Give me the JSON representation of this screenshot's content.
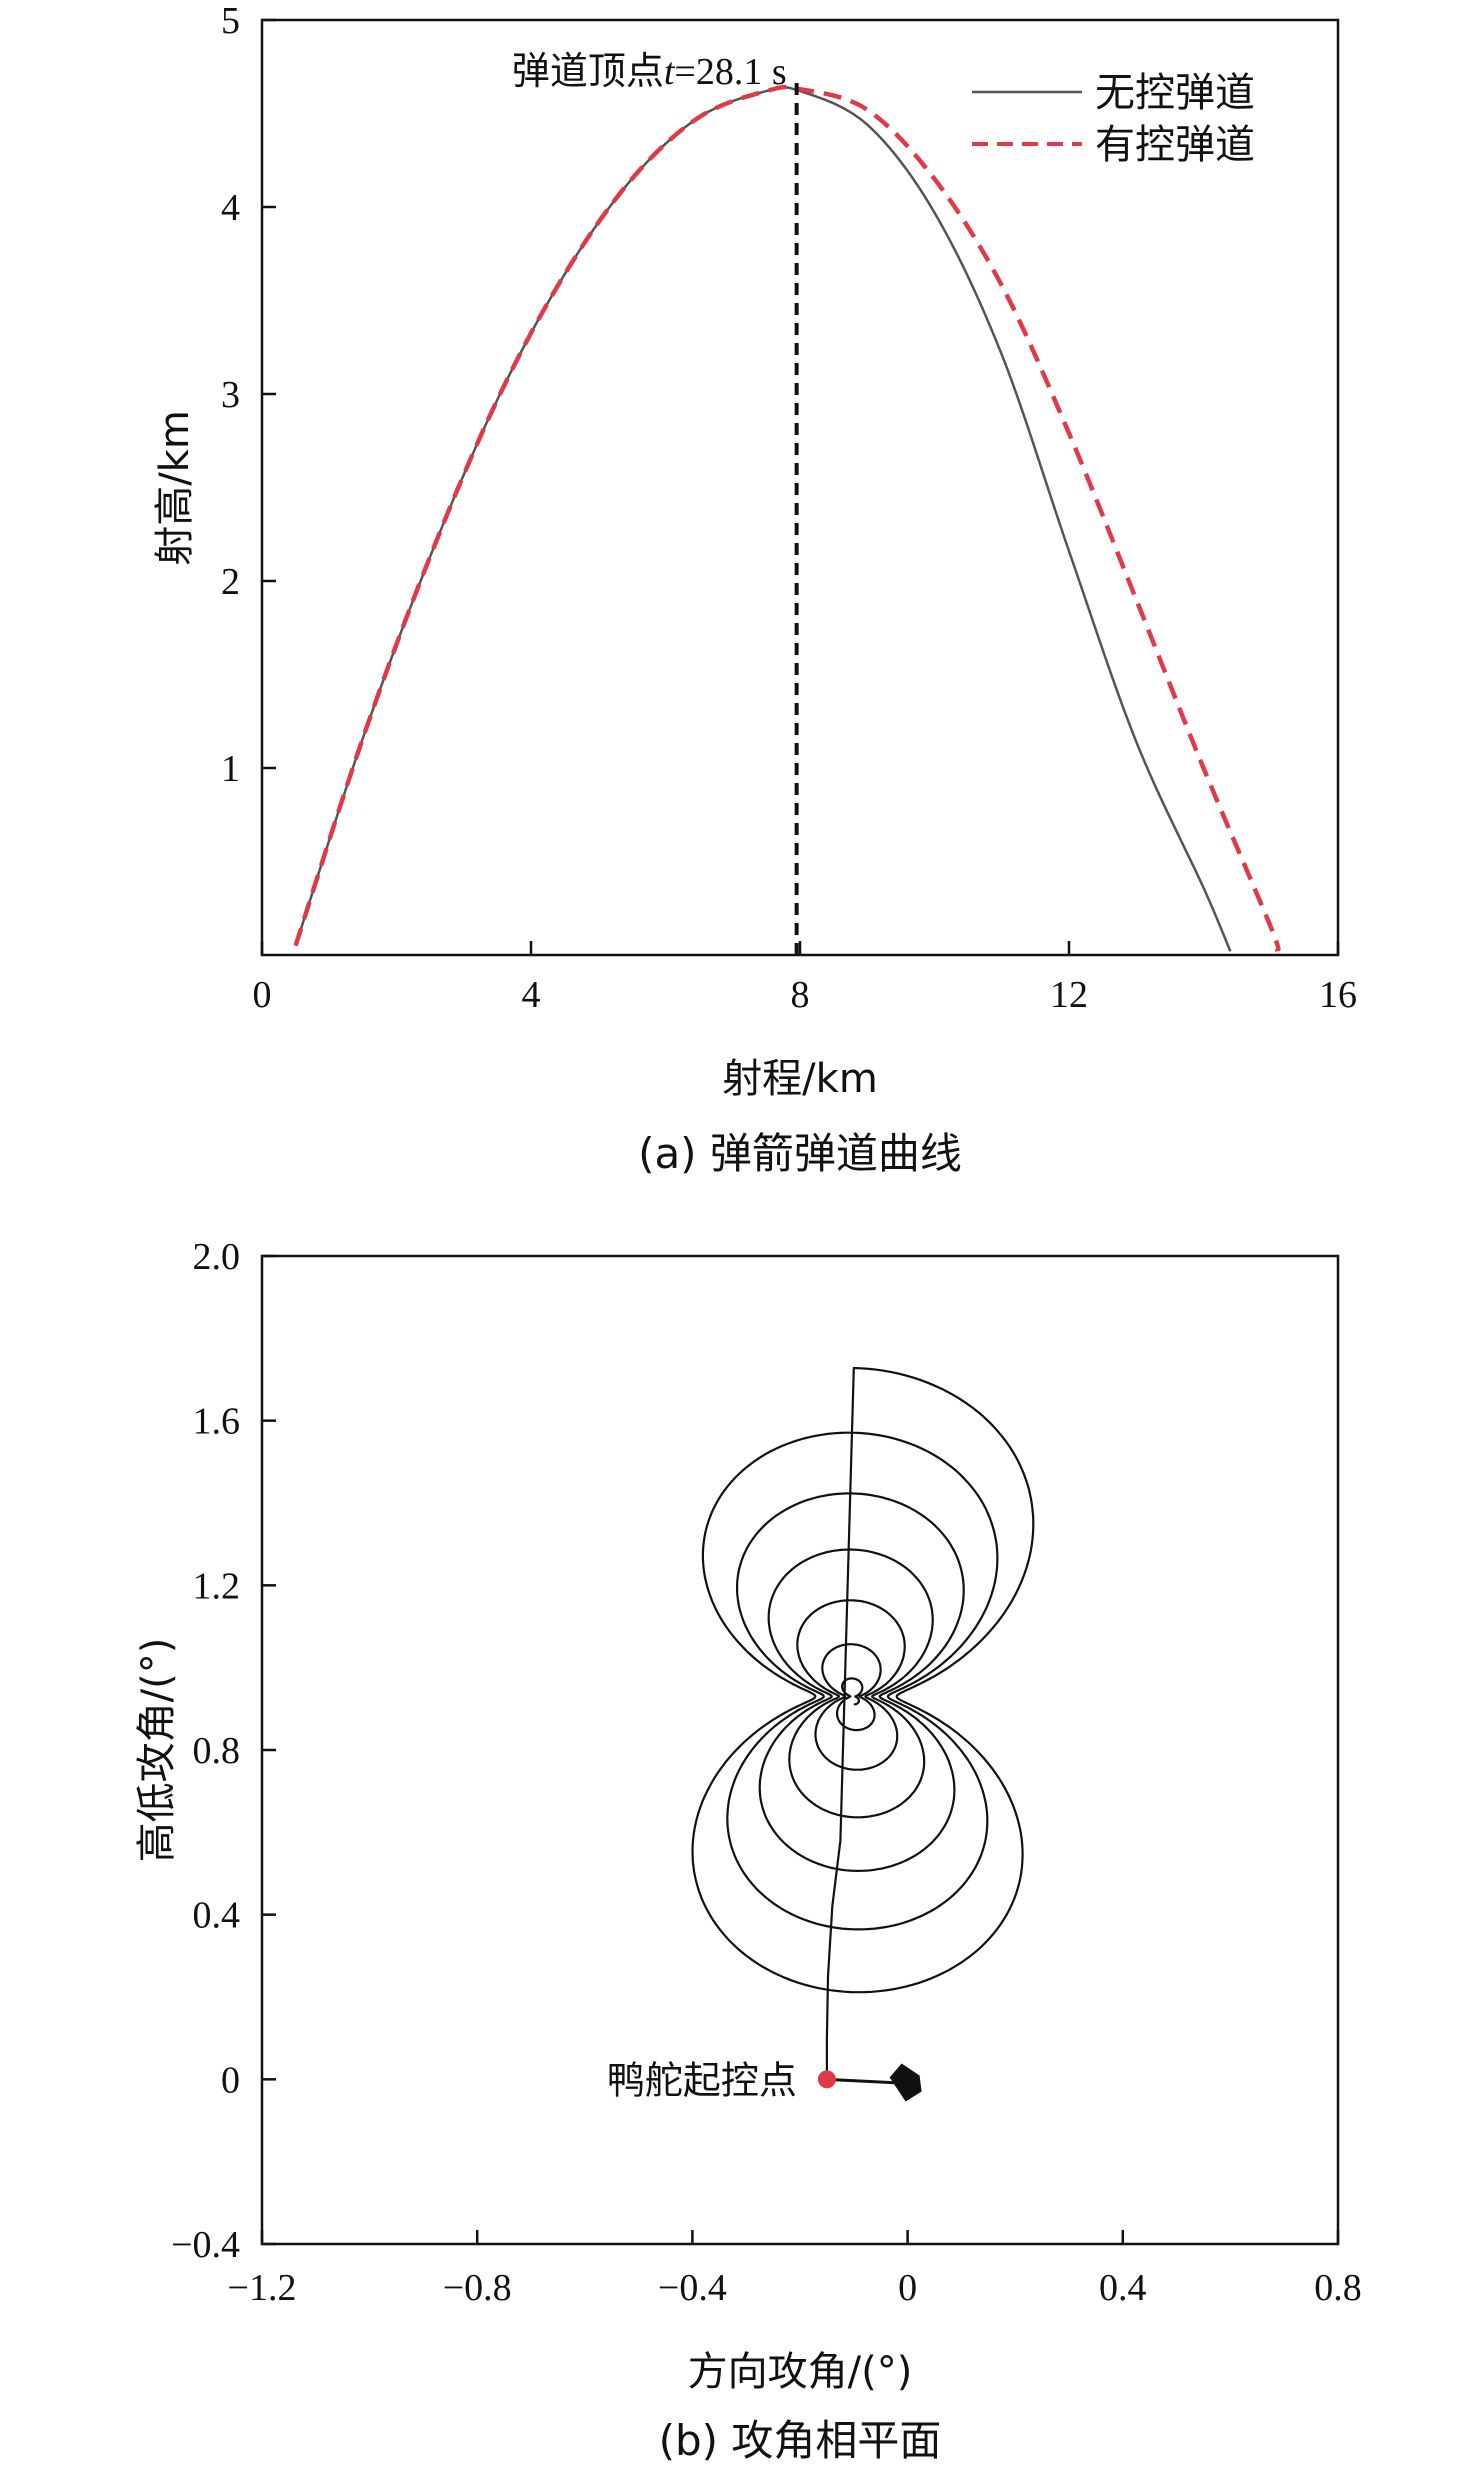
{
  "chart_data": [
    {
      "type": "line",
      "title": "",
      "caption": "(a)  弹箭弹道曲线",
      "xlabel": "射程/km",
      "ylabel": "射高/km",
      "xlim": [
        0,
        16
      ],
      "ylim": [
        0,
        5
      ],
      "x_ticks": [
        "0",
        "4",
        "8",
        "12",
        "16"
      ],
      "x_tick_values": [
        0,
        4,
        8,
        12,
        16
      ],
      "y_ticks": [
        "1",
        "2",
        "3",
        "4",
        "5"
      ],
      "y_tick_values": [
        1,
        2,
        3,
        4,
        5
      ],
      "grid": false,
      "legend_position": "top-right",
      "series": [
        {
          "name": "无控弹道",
          "color": "#555555",
          "style": "solid",
          "x": [
            0.5,
            1.5,
            2.5,
            3.5,
            4.5,
            5.5,
            6.5,
            7.5,
            8.0,
            9.0,
            10.0,
            11.0,
            12.0,
            13.0,
            14.0,
            14.4
          ],
          "y": [
            0.05,
            1.16,
            2.13,
            2.97,
            3.64,
            4.15,
            4.48,
            4.62,
            4.62,
            4.44,
            3.97,
            3.21,
            2.16,
            1.14,
            0.36,
            0.02
          ]
        },
        {
          "name": "有控弹道",
          "color": "#e03a4a",
          "style": "dashed",
          "x": [
            0.5,
            1.5,
            2.5,
            3.5,
            4.5,
            5.5,
            6.5,
            7.5,
            8.0,
            9.0,
            10.0,
            11.0,
            12.0,
            13.0,
            14.0,
            15.0,
            15.1
          ],
          "y": [
            0.05,
            1.16,
            2.13,
            2.97,
            3.64,
            4.15,
            4.48,
            4.62,
            4.63,
            4.52,
            4.15,
            3.58,
            2.79,
            1.9,
            1.0,
            0.15,
            0.02
          ]
        }
      ],
      "vline": {
        "x": 7.95,
        "label": "弹道顶点",
        "label_t": "t",
        "label_value": "=28.1 s"
      }
    },
    {
      "type": "line",
      "title": "",
      "caption": "(b) 攻角相平面",
      "xlabel": "方向攻角/(°)",
      "ylabel": "高低攻角/(°)",
      "xlim": [
        -1.2,
        0.8
      ],
      "ylim": [
        -0.4,
        2.0
      ],
      "x_ticks": [
        "−1.2",
        "−0.8",
        "−0.4",
        "0",
        "0.4",
        "0.8"
      ],
      "x_tick_values": [
        -1.2,
        -0.8,
        -0.4,
        0,
        0.4,
        0.8
      ],
      "y_ticks": [
        "−0.4",
        "0",
        "0.4",
        "0.8",
        "1.2",
        "1.6",
        "2.0"
      ],
      "y_tick_values": [
        -0.4,
        0,
        0.4,
        0.8,
        1.2,
        1.6,
        2.0
      ],
      "grid": false,
      "start_point": {
        "x": -0.15,
        "y": 0,
        "label": "鸭舵起控点",
        "color": "#e03a4a"
      },
      "marker_end": {
        "x": 0.0,
        "y": -0.01
      },
      "spiral": {
        "center_x": -0.1,
        "center_y": 0.93,
        "lobes": 5,
        "max_radius": 0.82,
        "turns": 6.5
      }
    }
  ]
}
